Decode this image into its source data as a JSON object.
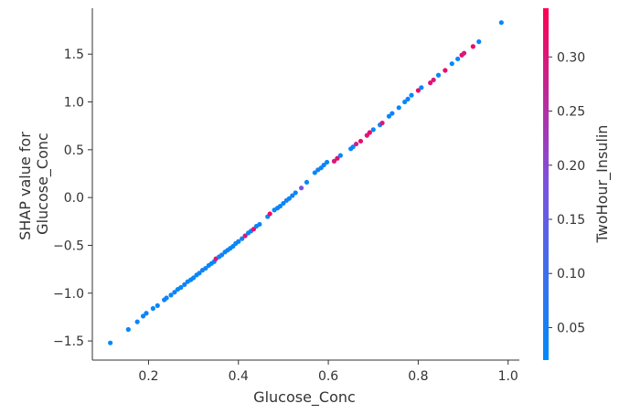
{
  "chart_data": {
    "type": "scatter",
    "xlabel": "Glucose_Conc",
    "ylabel_lines": [
      "SHAP value for",
      "Glucose_Conc"
    ],
    "xlim": [
      0.075,
      1.025
    ],
    "ylim": [
      -1.7,
      1.98
    ],
    "xticks": [
      0.2,
      0.4,
      0.6,
      0.8,
      1.0
    ],
    "xtick_labels": [
      "0.2",
      "0.4",
      "0.6",
      "0.8",
      "1.0"
    ],
    "yticks": [
      -1.5,
      -1.0,
      -0.5,
      0.0,
      0.5,
      1.0,
      1.5
    ],
    "ytick_labels": [
      "−1.5",
      "−1.0",
      "−0.5",
      "0.0",
      "0.5",
      "1.0",
      "1.5"
    ],
    "grid": false,
    "colorbar": {
      "label": "TwoHour_Insulin",
      "range": [
        0.02,
        0.345
      ],
      "ticks": [
        0.05,
        0.1,
        0.15,
        0.2,
        0.25,
        0.3
      ],
      "tick_labels": [
        "0.05",
        "0.10",
        "0.15",
        "0.20",
        "0.25",
        "0.30"
      ],
      "low_color": "#008afb",
      "mid_color": "#7c52e0",
      "high_color": "#ff0052"
    },
    "points": [
      [
        0.115,
        -1.52,
        0.03
      ],
      [
        0.155,
        -1.38,
        0.03
      ],
      [
        0.175,
        -1.3,
        0.03
      ],
      [
        0.188,
        -1.24,
        0.03
      ],
      [
        0.195,
        -1.21,
        0.04
      ],
      [
        0.21,
        -1.16,
        0.03
      ],
      [
        0.22,
        -1.13,
        0.03
      ],
      [
        0.235,
        -1.07,
        0.04
      ],
      [
        0.24,
        -1.05,
        0.03
      ],
      [
        0.25,
        -1.02,
        0.03
      ],
      [
        0.258,
        -0.99,
        0.04
      ],
      [
        0.265,
        -0.96,
        0.03
      ],
      [
        0.272,
        -0.94,
        0.03
      ],
      [
        0.28,
        -0.91,
        0.05
      ],
      [
        0.287,
        -0.88,
        0.03
      ],
      [
        0.294,
        -0.86,
        0.03
      ],
      [
        0.3,
        -0.84,
        0.04
      ],
      [
        0.307,
        -0.81,
        0.03
      ],
      [
        0.313,
        -0.79,
        0.03
      ],
      [
        0.32,
        -0.76,
        0.06
      ],
      [
        0.327,
        -0.74,
        0.03
      ],
      [
        0.334,
        -0.71,
        0.04
      ],
      [
        0.34,
        -0.69,
        0.03
      ],
      [
        0.346,
        -0.67,
        0.03
      ],
      [
        0.35,
        -0.64,
        0.3
      ],
      [
        0.357,
        -0.62,
        0.03
      ],
      [
        0.363,
        -0.6,
        0.05
      ],
      [
        0.37,
        -0.57,
        0.03
      ],
      [
        0.376,
        -0.55,
        0.03
      ],
      [
        0.382,
        -0.53,
        0.04
      ],
      [
        0.388,
        -0.51,
        0.03
      ],
      [
        0.394,
        -0.48,
        0.03
      ],
      [
        0.4,
        -0.46,
        0.03
      ],
      [
        0.408,
        -0.43,
        0.05
      ],
      [
        0.415,
        -0.4,
        0.3
      ],
      [
        0.422,
        -0.37,
        0.03
      ],
      [
        0.428,
        -0.35,
        0.04
      ],
      [
        0.434,
        -0.33,
        0.32
      ],
      [
        0.44,
        -0.3,
        0.03
      ],
      [
        0.447,
        -0.28,
        0.04
      ],
      [
        0.465,
        -0.2,
        0.03
      ],
      [
        0.47,
        -0.17,
        0.32
      ],
      [
        0.48,
        -0.13,
        0.03
      ],
      [
        0.487,
        -0.11,
        0.04
      ],
      [
        0.493,
        -0.09,
        0.03
      ],
      [
        0.5,
        -0.06,
        0.03
      ],
      [
        0.507,
        -0.03,
        0.05
      ],
      [
        0.513,
        -0.01,
        0.03
      ],
      [
        0.52,
        0.02,
        0.04
      ],
      [
        0.527,
        0.05,
        0.03
      ],
      [
        0.54,
        0.1,
        0.18
      ],
      [
        0.552,
        0.16,
        0.03
      ],
      [
        0.57,
        0.26,
        0.03
      ],
      [
        0.577,
        0.29,
        0.05
      ],
      [
        0.584,
        0.31,
        0.03
      ],
      [
        0.59,
        0.34,
        0.04
      ],
      [
        0.597,
        0.37,
        0.03
      ],
      [
        0.613,
        0.38,
        0.3
      ],
      [
        0.62,
        0.41,
        0.32
      ],
      [
        0.627,
        0.44,
        0.03
      ],
      [
        0.65,
        0.51,
        0.03
      ],
      [
        0.655,
        0.53,
        0.04
      ],
      [
        0.662,
        0.56,
        0.28
      ],
      [
        0.672,
        0.59,
        0.32
      ],
      [
        0.686,
        0.65,
        0.3
      ],
      [
        0.692,
        0.68,
        0.32
      ],
      [
        0.7,
        0.71,
        0.03
      ],
      [
        0.715,
        0.76,
        0.04
      ],
      [
        0.72,
        0.78,
        0.3
      ],
      [
        0.735,
        0.85,
        0.03
      ],
      [
        0.742,
        0.88,
        0.04
      ],
      [
        0.757,
        0.94,
        0.03
      ],
      [
        0.77,
        1.0,
        0.03
      ],
      [
        0.777,
        1.03,
        0.04
      ],
      [
        0.785,
        1.07,
        0.03
      ],
      [
        0.8,
        1.12,
        0.32
      ],
      [
        0.807,
        1.15,
        0.03
      ],
      [
        0.827,
        1.2,
        0.31
      ],
      [
        0.834,
        1.23,
        0.3
      ],
      [
        0.845,
        1.28,
        0.03
      ],
      [
        0.86,
        1.33,
        0.32
      ],
      [
        0.875,
        1.4,
        0.03
      ],
      [
        0.888,
        1.45,
        0.03
      ],
      [
        0.897,
        1.49,
        0.32
      ],
      [
        0.902,
        1.51,
        0.29
      ],
      [
        0.922,
        1.58,
        0.32
      ],
      [
        0.935,
        1.63,
        0.03
      ],
      [
        0.985,
        1.83,
        0.03
      ]
    ]
  }
}
